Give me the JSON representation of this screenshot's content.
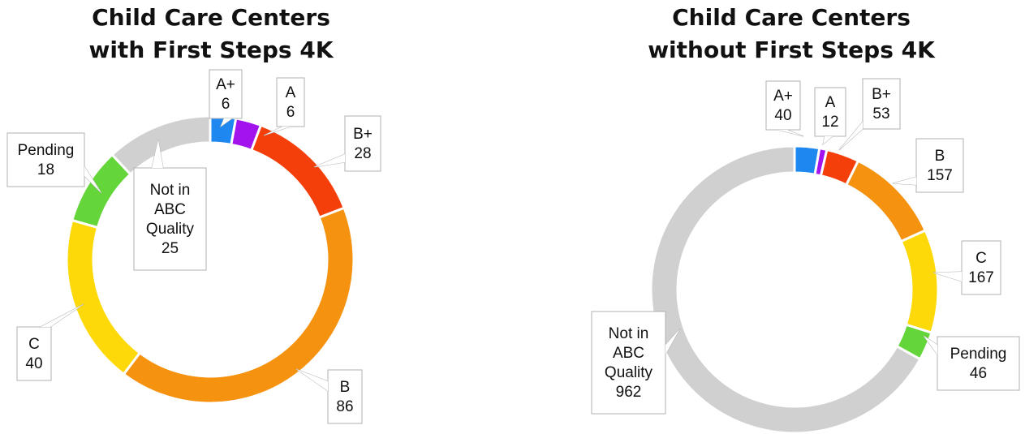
{
  "chart_data": [
    {
      "type": "pie",
      "title": "Child Care Centers\nwith First Steps 4K",
      "categories": [
        "A+",
        "A",
        "B+",
        "B",
        "C",
        "Pending",
        "Not in ABC Quality"
      ],
      "values": [
        6,
        6,
        28,
        86,
        40,
        18,
        25
      ],
      "labels": [
        [
          "A+",
          "6"
        ],
        [
          "A",
          "6"
        ],
        [
          "B+",
          "28"
        ],
        [
          "B",
          "86"
        ],
        [
          "C",
          "40"
        ],
        [
          "Pending",
          "18"
        ],
        [
          "Not in",
          "ABC",
          "Quality",
          "25"
        ]
      ],
      "colors": [
        "#1e88f0",
        "#a313ee",
        "#f43f0b",
        "#f5920f",
        "#fdd90a",
        "#64d63a",
        "#d0d0d0"
      ]
    },
    {
      "type": "pie",
      "title": "Child Care Centers\nwithout First Steps 4K",
      "categories": [
        "A+",
        "A",
        "B+",
        "B",
        "C",
        "Pending",
        "Not in ABC Quality"
      ],
      "values": [
        40,
        12,
        53,
        157,
        167,
        46,
        962
      ],
      "labels": [
        [
          "A+",
          "40"
        ],
        [
          "A",
          "12"
        ],
        [
          "B+",
          "53"
        ],
        [
          "B",
          "157"
        ],
        [
          "C",
          "167"
        ],
        [
          "Pending",
          "46"
        ],
        [
          "Not in",
          "ABC",
          "Quality",
          "962"
        ]
      ],
      "colors": [
        "#1e88f0",
        "#a313ee",
        "#f43f0b",
        "#f5920f",
        "#fdd90a",
        "#64d63a",
        "#d0d0d0"
      ]
    }
  ]
}
